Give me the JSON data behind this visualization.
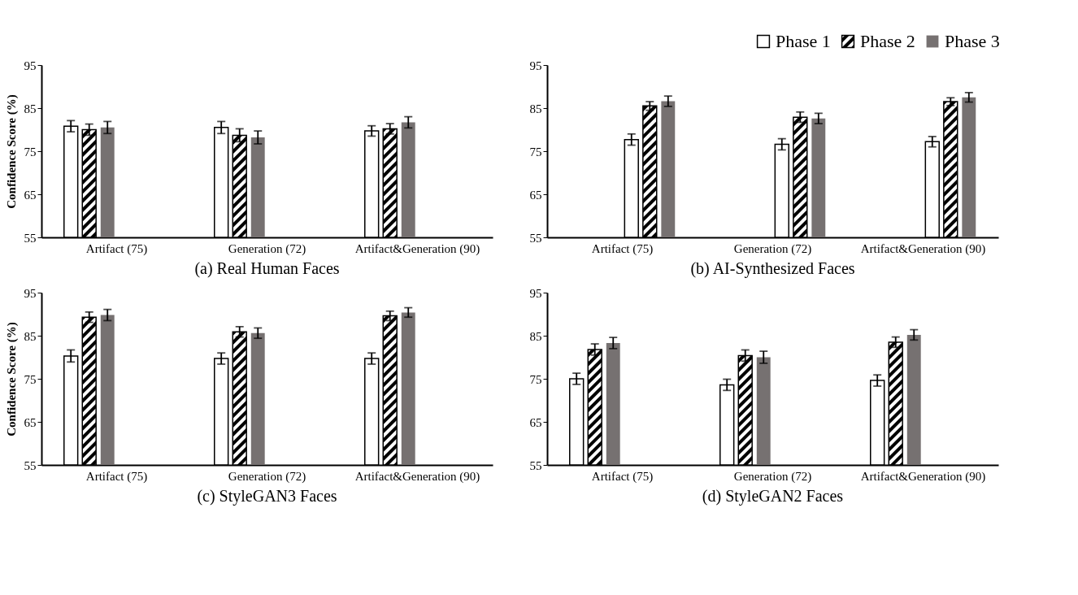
{
  "chart_data": [
    {
      "type": "bar",
      "title": "(a) Real Human Faces",
      "ylabel": "Confidence Score (%)",
      "categories": [
        "Artifact (75)",
        "Generation (72)",
        "Artifact&Generation (90)"
      ],
      "ylim": [
        55,
        95
      ],
      "yticks": [
        55,
        65,
        75,
        85,
        95
      ],
      "grid": false,
      "legend": false,
      "series": [
        {
          "color": "#ffffff",
          "values": [
            80.8,
            80.5,
            79.7
          ],
          "errors": [
            1.3,
            1.4,
            1.2
          ]
        },
        {
          "color": "#000000",
          "values": [
            80.0,
            78.7,
            80.2
          ],
          "errors": [
            1.3,
            1.5,
            1.2
          ]
        },
        {
          "color": "#767171",
          "values": [
            80.5,
            78.2,
            81.7
          ],
          "errors": [
            1.4,
            1.5,
            1.3
          ]
        }
      ]
    },
    {
      "type": "bar",
      "title": "(b) AI-Synthesized Faces",
      "categories": [
        "Artifact (75)",
        "Generation (72)",
        "Artifact&Generation (90)"
      ],
      "ylim": [
        55,
        95
      ],
      "yticks": [
        55,
        65,
        75,
        85,
        95
      ],
      "grid": false,
      "legend": "top right",
      "series": [
        {
          "name": "Phase 1",
          "color": "#ffffff",
          "values": [
            77.7,
            76.6,
            77.2
          ],
          "errors": [
            1.3,
            1.3,
            1.2
          ]
        },
        {
          "name": "Phase 2",
          "color": "#000000",
          "values": [
            85.5,
            82.9,
            86.5
          ],
          "errors": [
            1.0,
            1.2,
            0.9
          ]
        },
        {
          "name": "Phase 3",
          "color": "#767171",
          "values": [
            86.6,
            82.6,
            87.5
          ],
          "errors": [
            1.2,
            1.2,
            1.1
          ]
        }
      ]
    },
    {
      "type": "bar",
      "title": "(c) StyleGAN3 Faces",
      "ylabel": "Confidence Score (%)",
      "categories": [
        "Artifact (75)",
        "Generation (72)",
        "Artifact&Generation (90)"
      ],
      "ylim": [
        55,
        95
      ],
      "yticks": [
        55,
        65,
        75,
        85,
        95
      ],
      "grid": false,
      "legend": false,
      "series": [
        {
          "color": "#ffffff",
          "values": [
            80.3,
            79.7,
            79.7
          ],
          "errors": [
            1.4,
            1.3,
            1.3
          ]
        },
        {
          "color": "#000000",
          "values": [
            89.3,
            85.9,
            89.6
          ],
          "errors": [
            1.2,
            1.2,
            1.1
          ]
        },
        {
          "color": "#767171",
          "values": [
            89.8,
            85.6,
            90.4
          ],
          "errors": [
            1.3,
            1.2,
            1.1
          ]
        }
      ]
    },
    {
      "type": "bar",
      "title": "(d) StyleGAN2 Faces",
      "categories": [
        "Artifact (75)",
        "Generation (72)",
        "Artifact&Generation (90)"
      ],
      "ylim": [
        55,
        95
      ],
      "yticks": [
        55,
        65,
        75,
        85,
        95
      ],
      "grid": false,
      "legend": false,
      "series": [
        {
          "color": "#ffffff",
          "values": [
            75.0,
            73.6,
            74.6
          ],
          "errors": [
            1.3,
            1.3,
            1.3
          ]
        },
        {
          "color": "#000000",
          "values": [
            81.8,
            80.4,
            83.5
          ],
          "errors": [
            1.3,
            1.3,
            1.2
          ]
        },
        {
          "color": "#767171",
          "values": [
            83.3,
            80.0,
            85.2
          ],
          "errors": [
            1.3,
            1.4,
            1.2
          ]
        }
      ]
    }
  ]
}
